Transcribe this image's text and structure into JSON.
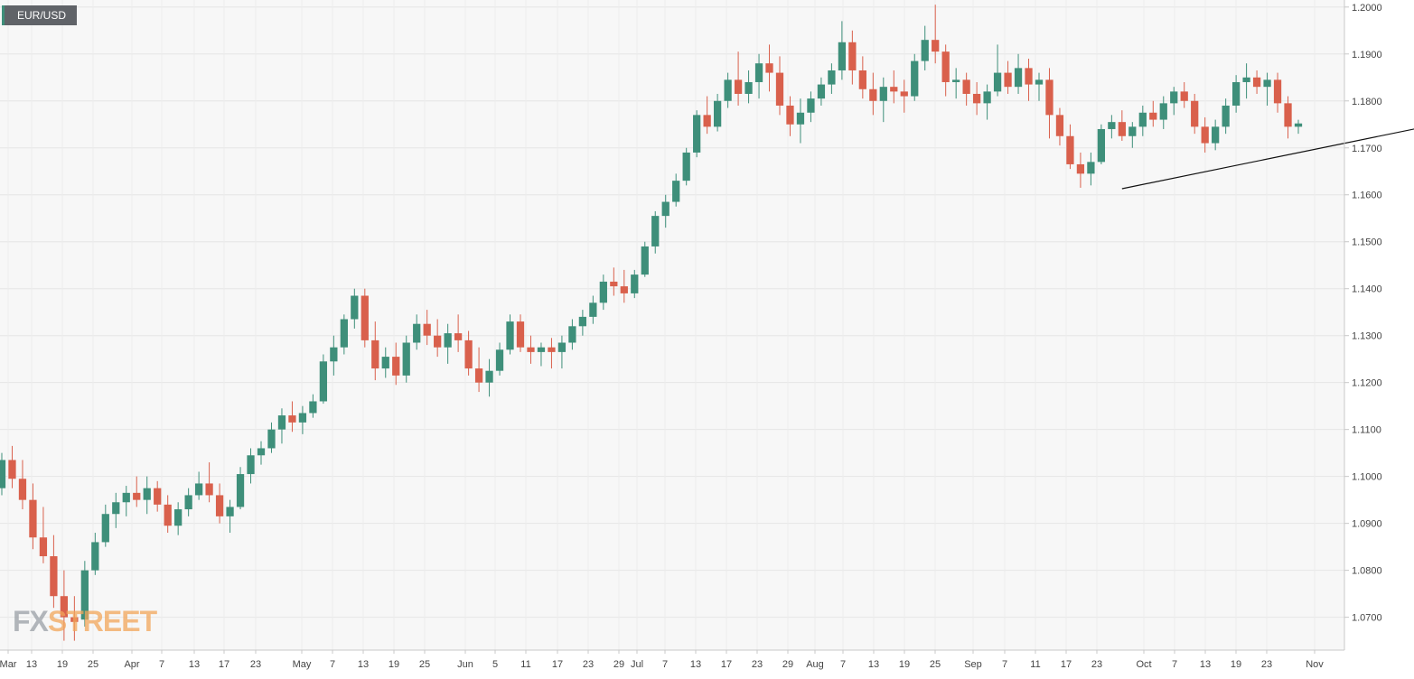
{
  "chart_data": {
    "type": "candlestick",
    "symbol": "EUR/USD",
    "ylim": [
      1.063,
      1.2015
    ],
    "y_ticks": [
      "1.2000",
      "1.1900",
      "1.1800",
      "1.1700",
      "1.1600",
      "1.1500",
      "1.1400",
      "1.1300",
      "1.1200",
      "1.1100",
      "1.1000",
      "1.0900",
      "1.0800",
      "1.0700"
    ],
    "x_ticks": [
      "Mar",
      "13",
      "19",
      "25",
      "Apr",
      "7",
      "13",
      "17",
      "23",
      "May",
      "7",
      "13",
      "19",
      "25",
      "Jun",
      "5",
      "11",
      "17",
      "23",
      "29",
      "Jul",
      "7",
      "13",
      "17",
      "23",
      "29",
      "Aug",
      "7",
      "13",
      "19",
      "25",
      "Sep",
      "7",
      "11",
      "17",
      "23",
      "Oct",
      "7",
      "13",
      "19",
      "23",
      "Nov"
    ],
    "grid": true,
    "up_color": "#3e8f7a",
    "down_color": "#d9604c",
    "candles": [
      [
        1.0975,
        1.105,
        1.096,
        1.1035
      ],
      [
        1.1035,
        1.1065,
        1.0975,
        1.0995
      ],
      [
        1.0995,
        1.1035,
        1.093,
        1.095
      ],
      [
        1.095,
        1.0985,
        1.0845,
        1.087
      ],
      [
        1.087,
        1.0935,
        1.0815,
        1.083
      ],
      [
        1.083,
        1.0875,
        1.072,
        1.0745
      ],
      [
        1.0745,
        1.08,
        1.065,
        1.07
      ],
      [
        1.07,
        1.0745,
        1.065,
        1.069
      ],
      [
        1.0695,
        1.082,
        1.068,
        1.08
      ],
      [
        1.08,
        1.088,
        1.079,
        1.086
      ],
      [
        1.086,
        1.094,
        1.085,
        1.092
      ],
      [
        1.092,
        1.0965,
        1.089,
        1.0945
      ],
      [
        1.0945,
        1.098,
        1.0915,
        1.0965
      ],
      [
        1.0965,
        1.1,
        1.0935,
        1.095
      ],
      [
        1.095,
        1.1,
        1.092,
        1.0975
      ],
      [
        1.0975,
        1.099,
        1.0925,
        1.094
      ],
      [
        1.094,
        1.096,
        1.088,
        1.0895
      ],
      [
        1.0895,
        1.0945,
        1.0875,
        1.093
      ],
      [
        1.093,
        1.0975,
        1.0915,
        1.096
      ],
      [
        1.096,
        1.101,
        1.095,
        1.0985
      ],
      [
        1.0985,
        1.103,
        1.0945,
        1.096
      ],
      [
        1.096,
        1.0985,
        1.09,
        1.0915
      ],
      [
        1.0915,
        1.095,
        1.088,
        1.0935
      ],
      [
        1.0935,
        1.102,
        1.093,
        1.1005
      ],
      [
        1.1005,
        1.106,
        1.0985,
        1.1045
      ],
      [
        1.1045,
        1.1075,
        1.1025,
        1.106
      ],
      [
        1.106,
        1.1115,
        1.105,
        1.11
      ],
      [
        1.11,
        1.1145,
        1.107,
        1.113
      ],
      [
        1.113,
        1.116,
        1.1095,
        1.1115
      ],
      [
        1.1115,
        1.115,
        1.109,
        1.1135
      ],
      [
        1.1135,
        1.1175,
        1.1125,
        1.116
      ],
      [
        1.116,
        1.126,
        1.1155,
        1.1245
      ],
      [
        1.1245,
        1.13,
        1.1215,
        1.1275
      ],
      [
        1.1275,
        1.1345,
        1.126,
        1.1335
      ],
      [
        1.1335,
        1.14,
        1.1315,
        1.1385
      ],
      [
        1.1385,
        1.14,
        1.1275,
        1.129
      ],
      [
        1.129,
        1.133,
        1.1205,
        1.123
      ],
      [
        1.123,
        1.1275,
        1.121,
        1.1255
      ],
      [
        1.1255,
        1.1285,
        1.1195,
        1.1215
      ],
      [
        1.1215,
        1.13,
        1.12,
        1.1285
      ],
      [
        1.1285,
        1.1345,
        1.127,
        1.1325
      ],
      [
        1.1325,
        1.1355,
        1.128,
        1.13
      ],
      [
        1.13,
        1.1335,
        1.1255,
        1.1275
      ],
      [
        1.1275,
        1.1325,
        1.124,
        1.1305
      ],
      [
        1.1305,
        1.1345,
        1.1265,
        1.129
      ],
      [
        1.129,
        1.131,
        1.1215,
        1.123
      ],
      [
        1.123,
        1.1275,
        1.118,
        1.12
      ],
      [
        1.12,
        1.125,
        1.117,
        1.1225
      ],
      [
        1.1225,
        1.1285,
        1.1215,
        1.127
      ],
      [
        1.127,
        1.1345,
        1.126,
        1.133
      ],
      [
        1.133,
        1.1345,
        1.1265,
        1.1275
      ],
      [
        1.1275,
        1.13,
        1.124,
        1.1265
      ],
      [
        1.1265,
        1.1285,
        1.1235,
        1.1275
      ],
      [
        1.1275,
        1.1295,
        1.123,
        1.1265
      ],
      [
        1.1265,
        1.13,
        1.123,
        1.1285
      ],
      [
        1.1285,
        1.1335,
        1.127,
        1.132
      ],
      [
        1.132,
        1.1355,
        1.13,
        1.134
      ],
      [
        1.134,
        1.1385,
        1.1325,
        1.137
      ],
      [
        1.137,
        1.143,
        1.1355,
        1.1415
      ],
      [
        1.1415,
        1.1445,
        1.1385,
        1.1405
      ],
      [
        1.1405,
        1.144,
        1.137,
        1.139
      ],
      [
        1.139,
        1.144,
        1.138,
        1.143
      ],
      [
        1.143,
        1.15,
        1.1425,
        1.149
      ],
      [
        1.149,
        1.1565,
        1.1475,
        1.1555
      ],
      [
        1.1555,
        1.16,
        1.153,
        1.1585
      ],
      [
        1.1585,
        1.1645,
        1.1575,
        1.163
      ],
      [
        1.163,
        1.17,
        1.162,
        1.169
      ],
      [
        1.169,
        1.178,
        1.168,
        1.177
      ],
      [
        1.177,
        1.181,
        1.173,
        1.1745
      ],
      [
        1.1745,
        1.1815,
        1.1735,
        1.18
      ],
      [
        1.18,
        1.186,
        1.1785,
        1.1845
      ],
      [
        1.1845,
        1.1905,
        1.179,
        1.1815
      ],
      [
        1.1815,
        1.1865,
        1.1795,
        1.184
      ],
      [
        1.184,
        1.19,
        1.1805,
        1.188
      ],
      [
        1.188,
        1.192,
        1.182,
        1.186
      ],
      [
        1.186,
        1.1895,
        1.177,
        1.179
      ],
      [
        1.179,
        1.181,
        1.1725,
        1.175
      ],
      [
        1.175,
        1.1805,
        1.171,
        1.1775
      ],
      [
        1.1775,
        1.182,
        1.1755,
        1.1805
      ],
      [
        1.1805,
        1.185,
        1.179,
        1.1835
      ],
      [
        1.1835,
        1.188,
        1.1815,
        1.1865
      ],
      [
        1.1865,
        1.197,
        1.1845,
        1.1925
      ],
      [
        1.1925,
        1.195,
        1.1835,
        1.1865
      ],
      [
        1.1865,
        1.1895,
        1.1805,
        1.1825
      ],
      [
        1.1825,
        1.186,
        1.177,
        1.18
      ],
      [
        1.18,
        1.185,
        1.1755,
        1.183
      ],
      [
        1.183,
        1.1865,
        1.1795,
        1.182
      ],
      [
        1.182,
        1.1845,
        1.1775,
        1.181
      ],
      [
        1.181,
        1.19,
        1.18,
        1.1885
      ],
      [
        1.1885,
        1.196,
        1.1865,
        1.193
      ],
      [
        1.193,
        1.2005,
        1.188,
        1.1905
      ],
      [
        1.1905,
        1.192,
        1.181,
        1.184
      ],
      [
        1.184,
        1.187,
        1.1805,
        1.1845
      ],
      [
        1.1845,
        1.186,
        1.179,
        1.1815
      ],
      [
        1.1815,
        1.184,
        1.177,
        1.1795
      ],
      [
        1.1795,
        1.1835,
        1.176,
        1.182
      ],
      [
        1.182,
        1.192,
        1.181,
        1.186
      ],
      [
        1.186,
        1.1885,
        1.1815,
        1.183
      ],
      [
        1.183,
        1.19,
        1.1815,
        1.187
      ],
      [
        1.187,
        1.189,
        1.18,
        1.1835
      ],
      [
        1.1835,
        1.186,
        1.18,
        1.1845
      ],
      [
        1.1845,
        1.187,
        1.172,
        1.177
      ],
      [
        1.177,
        1.1785,
        1.1705,
        1.1725
      ],
      [
        1.1725,
        1.175,
        1.1655,
        1.1665
      ],
      [
        1.1665,
        1.169,
        1.1615,
        1.1645
      ],
      [
        1.1645,
        1.169,
        1.162,
        1.167
      ],
      [
        1.167,
        1.175,
        1.1665,
        1.174
      ],
      [
        1.174,
        1.177,
        1.172,
        1.1755
      ],
      [
        1.1755,
        1.178,
        1.1715,
        1.1725
      ],
      [
        1.1725,
        1.1755,
        1.17,
        1.1745
      ],
      [
        1.1745,
        1.179,
        1.1725,
        1.1775
      ],
      [
        1.1775,
        1.18,
        1.1745,
        1.176
      ],
      [
        1.176,
        1.181,
        1.174,
        1.1795
      ],
      [
        1.1795,
        1.183,
        1.177,
        1.182
      ],
      [
        1.182,
        1.184,
        1.1785,
        1.18
      ],
      [
        1.18,
        1.1815,
        1.173,
        1.1745
      ],
      [
        1.1745,
        1.1765,
        1.169,
        1.171
      ],
      [
        1.171,
        1.176,
        1.1695,
        1.1745
      ],
      [
        1.1745,
        1.1805,
        1.173,
        1.179
      ],
      [
        1.179,
        1.1855,
        1.1775,
        1.184
      ],
      [
        1.184,
        1.188,
        1.1805,
        1.185
      ],
      [
        1.185,
        1.1865,
        1.1815,
        1.183
      ],
      [
        1.183,
        1.186,
        1.179,
        1.1845
      ],
      [
        1.1845,
        1.186,
        1.1775,
        1.1795
      ],
      [
        1.1795,
        1.181,
        1.172,
        1.1745
      ],
      [
        1.1745,
        1.176,
        1.173,
        1.1752
      ]
    ],
    "trendline": [
      [
        108,
        1.1613
      ],
      [
        145,
        1.178
      ]
    ]
  },
  "badge": {
    "label": "EUR/USD"
  },
  "watermark": {
    "part_a": "FX",
    "part_b": "STREET"
  }
}
